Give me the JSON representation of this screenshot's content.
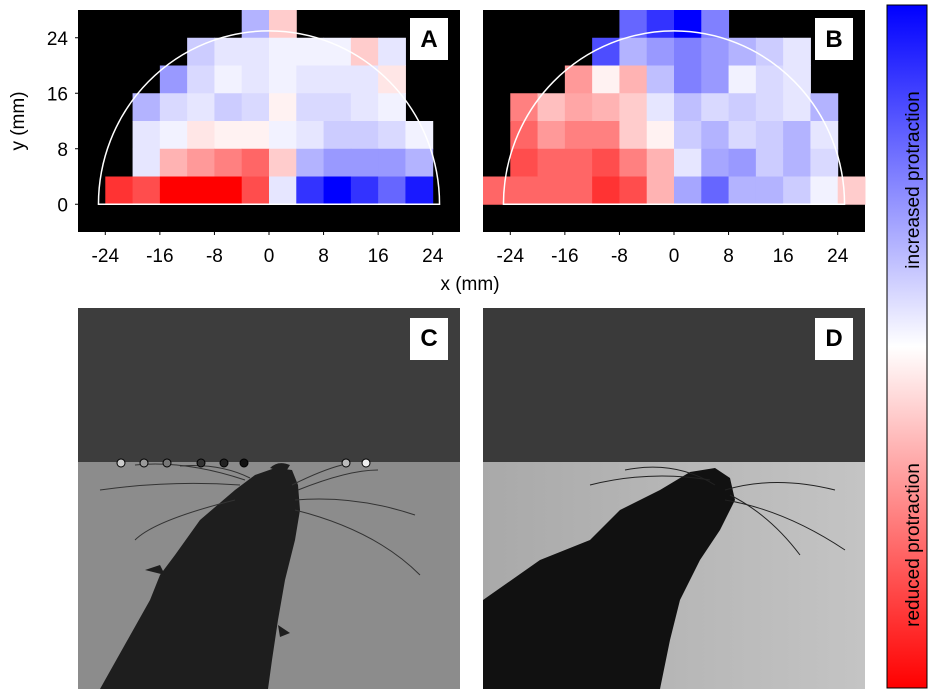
{
  "chart_data": [
    {
      "type": "heatmap",
      "label": "A",
      "xlabel": "x (mm)",
      "ylabel": "y (mm)",
      "xlim": [
        -28,
        28
      ],
      "ylim": [
        -4,
        28
      ],
      "xticks": [
        -24,
        -16,
        -8,
        0,
        8,
        16,
        24
      ],
      "yticks": [
        0,
        8,
        16,
        24
      ],
      "values": [
        [
          null,
          null,
          null,
          null,
          null,
          null,
          0.3,
          -0.2,
          null,
          null,
          null,
          null,
          null,
          null
        ],
        [
          null,
          null,
          null,
          null,
          0.2,
          0.1,
          0.1,
          0.05,
          0.05,
          0.05,
          -0.2,
          0.1,
          null,
          null
        ],
        [
          null,
          null,
          null,
          0.4,
          0.15,
          0.05,
          0.1,
          0.05,
          0.1,
          0.1,
          0.1,
          -0.1,
          null,
          null
        ],
        [
          null,
          null,
          0.3,
          0.15,
          0.1,
          0.2,
          0.15,
          -0.05,
          0.15,
          0.15,
          0.1,
          0.05,
          null,
          null
        ],
        [
          null,
          null,
          0.1,
          0.05,
          -0.1,
          -0.05,
          -0.05,
          0.05,
          0.1,
          0.2,
          0.2,
          0.15,
          0.05,
          null
        ],
        [
          null,
          null,
          0.1,
          -0.3,
          -0.4,
          -0.5,
          -0.6,
          -0.2,
          0.3,
          0.4,
          0.4,
          0.4,
          0.3,
          null
        ],
        [
          null,
          -0.8,
          -0.7,
          -1,
          -1,
          -1,
          -0.7,
          0.1,
          0.8,
          1,
          0.8,
          0.6,
          0.9,
          null
        ],
        [
          null,
          null,
          null,
          null,
          null,
          null,
          null,
          null,
          null,
          null,
          null,
          null,
          null,
          null
        ]
      ]
    },
    {
      "type": "heatmap",
      "label": "B",
      "xlim": [
        -28,
        28
      ],
      "ylim": [
        -4,
        28
      ],
      "xticks": [
        -24,
        -16,
        -8,
        0,
        8,
        16,
        24
      ],
      "values": [
        [
          null,
          null,
          null,
          null,
          null,
          0.6,
          0.8,
          1,
          0.5,
          null,
          null,
          null,
          null,
          null
        ],
        [
          null,
          null,
          null,
          null,
          0.7,
          0.3,
          0.4,
          0.5,
          0.4,
          0.3,
          0.2,
          0.1,
          null,
          null
        ],
        [
          null,
          null,
          null,
          -0.4,
          -0.05,
          -0.3,
          0.25,
          0.5,
          0.4,
          0.05,
          0.15,
          0.1,
          null,
          null
        ],
        [
          null,
          -0.5,
          -0.25,
          -0.35,
          -0.3,
          -0.2,
          0.1,
          0.25,
          0.15,
          0.2,
          0.15,
          0.1,
          0.3,
          null
        ],
        [
          null,
          -0.6,
          -0.4,
          -0.5,
          -0.5,
          -0.2,
          -0.05,
          0.2,
          0.3,
          0.15,
          0.2,
          0.3,
          0.1,
          null
        ],
        [
          null,
          -0.7,
          -0.6,
          -0.6,
          -0.7,
          -0.5,
          -0.3,
          0.1,
          0.35,
          0.4,
          0.2,
          0.3,
          0.15,
          null
        ],
        [
          -0.6,
          -0.6,
          -0.6,
          -0.6,
          -0.8,
          -0.7,
          -0.3,
          0.35,
          0.6,
          0.3,
          0.3,
          0.2,
          0.05,
          -0.2
        ],
        [
          null,
          null,
          null,
          null,
          null,
          null,
          null,
          null,
          null,
          null,
          null,
          null,
          null,
          null
        ]
      ]
    }
  ],
  "panels": [
    {
      "label": "C"
    },
    {
      "label": "D"
    }
  ],
  "colorbar": {
    "top_label": "increased protraction",
    "bottom_label": "reduced protraction"
  }
}
